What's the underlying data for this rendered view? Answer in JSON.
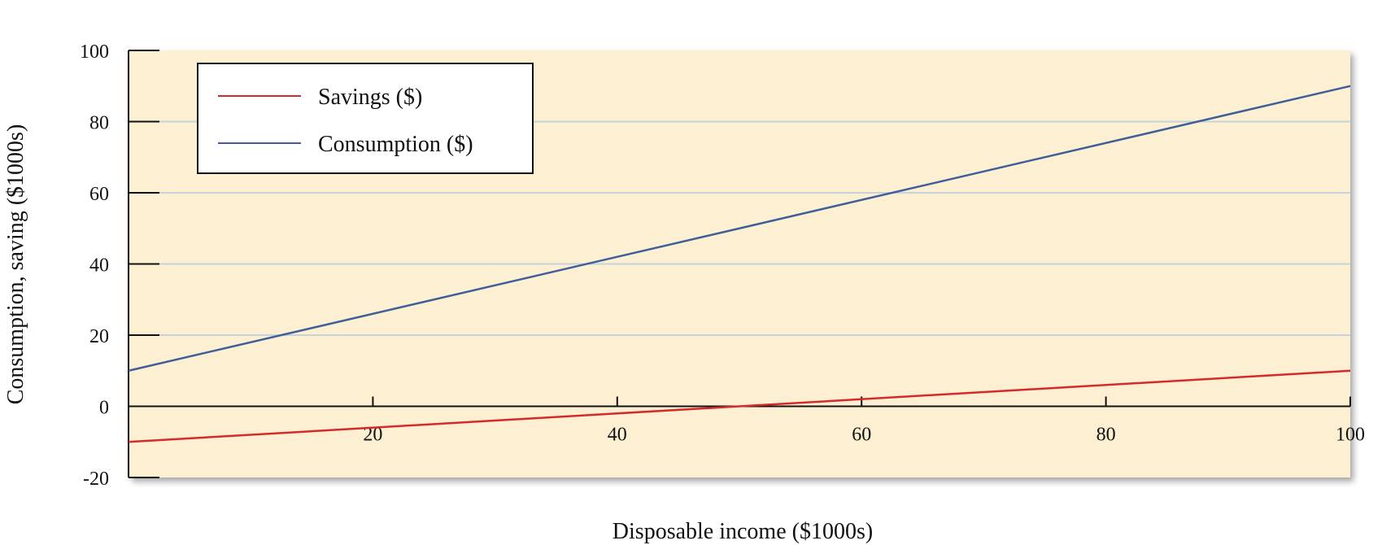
{
  "chart_data": {
    "type": "line",
    "xlabel": "Disposable income ($1000s)",
    "ylabel": "Consumption, saving ($1000s)",
    "xlim": [
      0,
      100
    ],
    "ylim": [
      -20,
      100
    ],
    "x_ticks": [
      20,
      40,
      60,
      80,
      100
    ],
    "y_ticks": [
      100,
      80,
      60,
      40,
      20,
      0,
      -20
    ],
    "grid": "horizontal",
    "legend_position": "top-left",
    "background_color": "#fdf0d2",
    "series": [
      {
        "name": "Savings ($)",
        "color": "#d42a2a",
        "x": [
          0,
          100
        ],
        "values": [
          -10,
          10
        ]
      },
      {
        "name": "Consumption ($)",
        "color": "#3f5f9a",
        "x": [
          0,
          100
        ],
        "values": [
          10,
          90
        ]
      }
    ]
  }
}
